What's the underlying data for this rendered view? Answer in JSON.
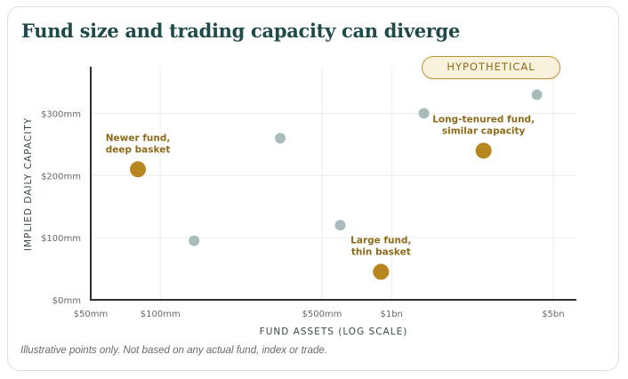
{
  "chart_data": {
    "type": "scatter",
    "title": "Fund size and trading capacity can diverge",
    "badge": "HYPOTHETICAL",
    "xlabel": "FUND ASSETS (LOG SCALE)",
    "ylabel": "IMPLIED DAILY CAPACITY",
    "x_scale": "log",
    "x_unit": "$mm",
    "y_unit": "$mm",
    "xlim": [
      50,
      6300
    ],
    "ylim": [
      0,
      375
    ],
    "x_ticks": [
      {
        "value": 50,
        "label": "$50mm"
      },
      {
        "value": 100,
        "label": "$100mm"
      },
      {
        "value": 500,
        "label": "$500mm"
      },
      {
        "value": 1000,
        "label": "$1bn"
      },
      {
        "value": 5000,
        "label": "$5bn"
      }
    ],
    "y_ticks": [
      {
        "value": 0,
        "label": "$0mm"
      },
      {
        "value": 100,
        "label": "$100mm"
      },
      {
        "value": 200,
        "label": "$200mm"
      },
      {
        "value": 300,
        "label": "$300mm"
      }
    ],
    "grid": true,
    "points": [
      {
        "x": 80,
        "y": 210,
        "highlight": true,
        "label": [
          "Newer fund,",
          "deep basket"
        ]
      },
      {
        "x": 140,
        "y": 95,
        "highlight": false
      },
      {
        "x": 330,
        "y": 260,
        "highlight": false
      },
      {
        "x": 600,
        "y": 120,
        "highlight": false
      },
      {
        "x": 900,
        "y": 45,
        "highlight": true,
        "label": [
          "Large fund,",
          "thin basket"
        ]
      },
      {
        "x": 1380,
        "y": 300,
        "highlight": false
      },
      {
        "x": 2500,
        "y": 240,
        "highlight": true,
        "label": [
          "Long-tenured fund,",
          "similar capacity"
        ]
      },
      {
        "x": 4250,
        "y": 330,
        "highlight": false
      }
    ],
    "colors": {
      "highlight": "#b8861f",
      "other": "#a9bcbc",
      "axis": "#2e2e2e",
      "grid": "#ebecea",
      "annotation": "#8e6b1a"
    }
  },
  "footnote": "Illustrative points only. Not based on any actual fund, index or trade."
}
